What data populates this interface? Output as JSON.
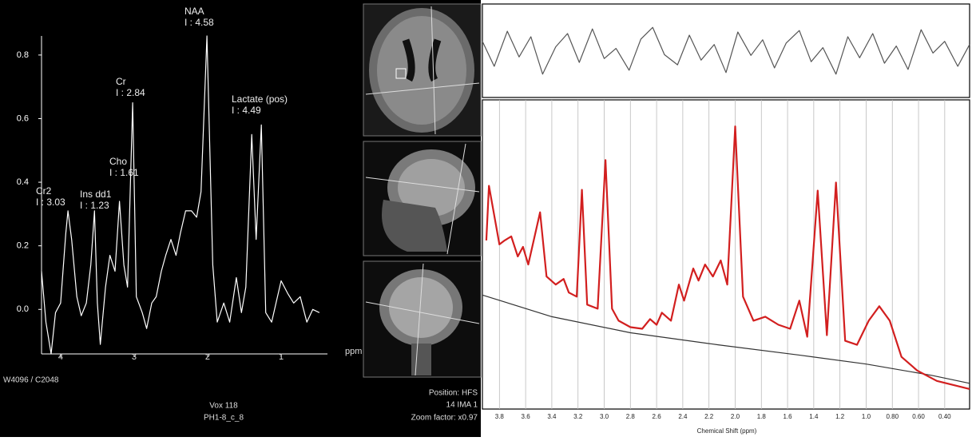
{
  "chart_data": [
    {
      "type": "line",
      "xlabel": "ppm",
      "xlim": [
        4.26,
        0.37
      ],
      "ylim": [
        -0.14,
        0.86
      ],
      "xticks": [
        4,
        3,
        2,
        1
      ],
      "yticks": [
        {
          "value": 0,
          "label": "0.0"
        },
        0.2,
        0.4,
        0.6,
        0.8
      ],
      "grid": false,
      "annotations": [
        [
          "Cr2",
          "I : 3.03"
        ],
        [
          "Ins dd1",
          "I : 1.23"
        ],
        [
          "Cho",
          "I : 1.61"
        ],
        [
          "Cr",
          "I : 2.84"
        ],
        [
          "NAA",
          "I : 4.58"
        ],
        [
          "Lactate (pos)",
          "I : 4.49"
        ]
      ],
      "series": [
        {
          "color": "#ffffff",
          "x": [
            4.26,
            4.2,
            4.13,
            4.07,
            4.0,
            3.93,
            3.9,
            3.85,
            3.78,
            3.72,
            3.65,
            3.59,
            3.54,
            3.5,
            3.46,
            3.39,
            3.33,
            3.26,
            3.2,
            3.14,
            3.09,
            3.02,
            2.97,
            2.89,
            2.83,
            2.76,
            2.7,
            2.63,
            2.57,
            2.5,
            2.43,
            2.37,
            2.3,
            2.22,
            2.15,
            2.09,
            2.01,
            1.93,
            1.87,
            1.78,
            1.7,
            1.61,
            1.54,
            1.48,
            1.4,
            1.34,
            1.27,
            1.21,
            1.13,
            1.07,
            1.0,
            0.91,
            0.83,
            0.74,
            0.65,
            0.57,
            0.48
          ],
          "values": [
            0.12,
            -0.04,
            -0.14,
            -0.01,
            0.02,
            0.24,
            0.31,
            0.22,
            0.04,
            -0.02,
            0.02,
            0.14,
            0.31,
            0.02,
            -0.11,
            0.07,
            0.17,
            0.12,
            0.34,
            0.14,
            0.07,
            0.65,
            0.04,
            -0.01,
            -0.06,
            0.02,
            0.04,
            0.12,
            0.17,
            0.22,
            0.17,
            0.24,
            0.31,
            0.31,
            0.29,
            0.37,
            0.86,
            0.14,
            -0.04,
            0.02,
            -0.04,
            0.1,
            -0.01,
            0.07,
            0.55,
            0.22,
            0.58,
            -0.01,
            -0.04,
            0.02,
            0.09,
            0.05,
            0.02,
            0.04,
            -0.04,
            0.0,
            -0.01
          ]
        }
      ]
    },
    {
      "type": "line",
      "xlim": [
        3.93,
        0.21
      ],
      "ylim": [
        -60,
        60
      ],
      "series": [
        {
          "color": "#555555",
          "x": [
            3.93,
            3.84,
            3.74,
            3.65,
            3.56,
            3.47,
            3.37,
            3.28,
            3.19,
            3.09,
            3.0,
            2.91,
            2.81,
            2.72,
            2.63,
            2.54,
            2.44,
            2.35,
            2.26,
            2.16,
            2.07,
            1.98,
            1.88,
            1.79,
            1.7,
            1.61,
            1.51,
            1.42,
            1.33,
            1.23,
            1.14,
            1.05,
            0.95,
            0.86,
            0.77,
            0.68,
            0.58,
            0.49,
            0.4,
            0.3,
            0.21
          ],
          "values": [
            12,
            -20,
            25,
            -8,
            18,
            -30,
            5,
            22,
            -15,
            28,
            -10,
            3,
            -25,
            15,
            30,
            -5,
            -18,
            20,
            -12,
            8,
            -28,
            24,
            -6,
            14,
            -22,
            10,
            26,
            -14,
            4,
            -30,
            18,
            -9,
            22,
            -16,
            6,
            -24,
            27,
            -3,
            12,
            -20,
            8
          ]
        }
      ]
    },
    {
      "type": "line",
      "xlabel": "Chemical Shift (ppm)",
      "xlim": [
        3.93,
        0.21
      ],
      "ylim": [
        0,
        385
      ],
      "xticks": [
        3.8,
        3.6,
        3.4,
        3.2,
        {
          "value": 3,
          "label": "3.0"
        },
        2.8,
        2.6,
        2.4,
        2.2,
        {
          "value": 2,
          "label": "2.0"
        },
        1.8,
        1.6,
        1.4,
        1.2,
        {
          "value": 1,
          "label": "1.0"
        },
        {
          "value": 0.8,
          "label": "0.80"
        },
        {
          "value": 0.6,
          "label": "0.60"
        },
        {
          "value": 0.4,
          "label": "0.40"
        }
      ],
      "grid": true,
      "series": [
        {
          "color": "#333333",
          "x": [
            3.93,
            3.4,
            2.8,
            2.13,
            1.5,
            1.0,
            0.5,
            0.21
          ],
          "values": [
            142,
            115,
            95,
            80,
            67,
            56,
            42,
            32
          ]
        },
        {
          "color": "#d21f1f",
          "x": [
            3.9,
            3.88,
            3.8,
            3.76,
            3.71,
            3.66,
            3.62,
            3.58,
            3.49,
            3.44,
            3.37,
            3.31,
            3.27,
            3.21,
            3.17,
            3.13,
            3.05,
            2.99,
            2.94,
            2.89,
            2.8,
            2.71,
            2.65,
            2.6,
            2.56,
            2.49,
            2.43,
            2.39,
            2.32,
            2.28,
            2.23,
            2.17,
            2.11,
            2.06,
            2.0,
            1.94,
            1.86,
            1.77,
            1.67,
            1.58,
            1.51,
            1.45,
            1.37,
            1.3,
            1.23,
            1.16,
            1.07,
            0.98,
            0.9,
            0.82,
            0.73,
            0.61,
            0.46,
            0.21
          ],
          "values": [
            210,
            278,
            205,
            210,
            215,
            190,
            202,
            180,
            245,
            165,
            155,
            162,
            145,
            140,
            273,
            130,
            125,
            310,
            125,
            110,
            102,
            100,
            112,
            105,
            120,
            110,
            155,
            135,
            175,
            160,
            180,
            165,
            185,
            155,
            352,
            140,
            110,
            115,
            105,
            100,
            135,
            90,
            272,
            92,
            282,
            85,
            80,
            110,
            128,
            110,
            65,
            48,
            35,
            25
          ]
        }
      ]
    }
  ],
  "viewer": {
    "window_level": "W4096 / C2048",
    "voxel": "Vox 118",
    "series": "PH1-8_c_8",
    "position": "Position: HFS",
    "image": "14 IMA 1",
    "zoom": "Zoom factor: x0.97"
  }
}
